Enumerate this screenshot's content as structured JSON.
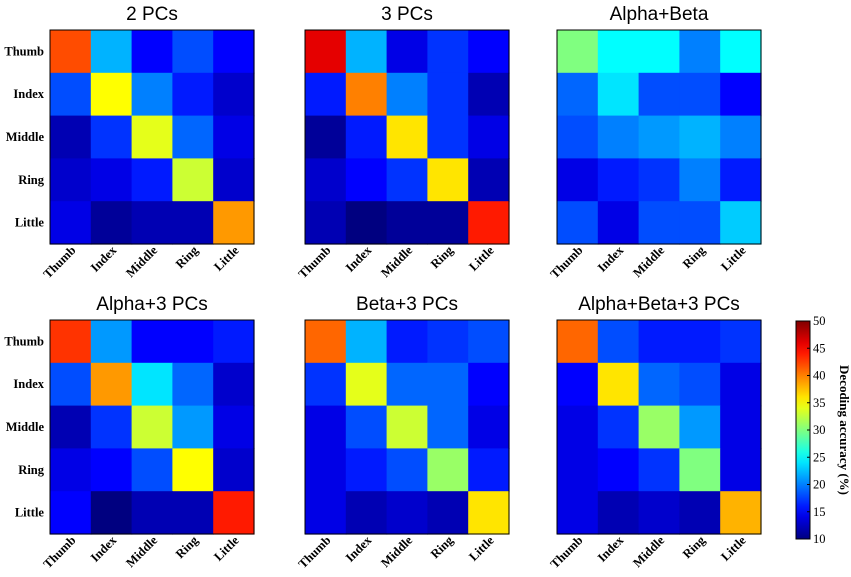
{
  "chart_data": {
    "type": "heatmap",
    "panels": [
      {
        "title": "2 PCs",
        "rows": [
          "Thumb",
          "Index",
          "Middle",
          "Ring",
          "Little"
        ],
        "cols": [
          "Thumb",
          "Index",
          "Middle",
          "Ring",
          "Little"
        ],
        "values": [
          [
            42,
            22,
            15,
            18,
            15
          ],
          [
            18,
            35,
            20,
            16,
            13
          ],
          [
            12,
            17,
            34,
            19,
            14
          ],
          [
            13,
            14,
            16,
            33,
            13
          ],
          [
            14,
            11,
            12,
            12,
            39
          ]
        ]
      },
      {
        "title": "3 PCs",
        "rows": [
          "Thumb",
          "Index",
          "Middle",
          "Ring",
          "Little"
        ],
        "cols": [
          "Thumb",
          "Index",
          "Middle",
          "Ring",
          "Little"
        ],
        "values": [
          [
            46,
            22,
            14,
            17,
            15
          ],
          [
            16,
            40,
            20,
            17,
            12
          ],
          [
            11,
            16,
            36,
            17,
            14
          ],
          [
            13,
            15,
            17,
            36,
            12
          ],
          [
            12,
            10,
            11,
            11,
            44
          ]
        ]
      },
      {
        "title": "Alpha+Beta",
        "rows": [
          "Thumb",
          "Index",
          "Middle",
          "Ring",
          "Little"
        ],
        "cols": [
          "Thumb",
          "Index",
          "Middle",
          "Ring",
          "Little"
        ],
        "values": [
          [
            30,
            25,
            25,
            20,
            25
          ],
          [
            19,
            24,
            18,
            18,
            15
          ],
          [
            18,
            20,
            21,
            22,
            20
          ],
          [
            14,
            16,
            17,
            20,
            16
          ],
          [
            18,
            14,
            18,
            18,
            23
          ]
        ]
      },
      {
        "title": "Alpha+3 PCs",
        "rows": [
          "Thumb",
          "Index",
          "Middle",
          "Ring",
          "Little"
        ],
        "cols": [
          "Thumb",
          "Index",
          "Middle",
          "Ring",
          "Little"
        ],
        "values": [
          [
            43,
            21,
            15,
            15,
            16
          ],
          [
            18,
            39,
            24,
            19,
            13
          ],
          [
            12,
            17,
            33,
            21,
            14
          ],
          [
            14,
            15,
            18,
            35,
            13
          ],
          [
            15,
            10,
            12,
            12,
            44
          ]
        ]
      },
      {
        "title": "Beta+3 PCs",
        "rows": [
          "Thumb",
          "Index",
          "Middle",
          "Ring",
          "Little"
        ],
        "cols": [
          "Thumb",
          "Index",
          "Middle",
          "Ring",
          "Little"
        ],
        "values": [
          [
            41,
            22,
            16,
            17,
            18
          ],
          [
            17,
            34,
            19,
            19,
            15
          ],
          [
            14,
            18,
            33,
            19,
            14
          ],
          [
            14,
            16,
            18,
            31,
            16
          ],
          [
            14,
            12,
            13,
            12,
            36
          ]
        ]
      },
      {
        "title": "Alpha+Beta+3 PCs",
        "rows": [
          "Thumb",
          "Index",
          "Middle",
          "Ring",
          "Little"
        ],
        "cols": [
          "Thumb",
          "Index",
          "Middle",
          "Ring",
          "Little"
        ],
        "values": [
          [
            41,
            18,
            16,
            16,
            17
          ],
          [
            15,
            36,
            19,
            18,
            14
          ],
          [
            14,
            17,
            31,
            21,
            14
          ],
          [
            14,
            15,
            17,
            30,
            14
          ],
          [
            14,
            12,
            13,
            12,
            38
          ]
        ]
      }
    ],
    "colorbar": {
      "label": "Decoding accuracy (%)",
      "min": 10,
      "max": 50,
      "ticks": [
        "10",
        "15",
        "20",
        "25",
        "30",
        "35",
        "40",
        "45",
        "50"
      ],
      "colormap": "jet"
    }
  }
}
